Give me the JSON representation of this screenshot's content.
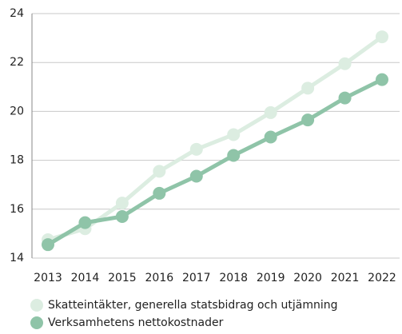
{
  "chart_data": {
    "type": "line",
    "categories": [
      "2013",
      "2014",
      "2015",
      "2016",
      "2017",
      "2018",
      "2019",
      "2020",
      "2021",
      "2022"
    ],
    "series": [
      {
        "name": "Skatteintäkter, generella statsbidrag och utjämning",
        "color": "#dcede1",
        "values": [
          14.75,
          15.2,
          16.25,
          17.55,
          18.45,
          19.05,
          19.95,
          20.95,
          21.95,
          23.05
        ]
      },
      {
        "name": "Verksamhetens nettokostnader",
        "color": "#8fc4a8",
        "values": [
          14.55,
          15.45,
          15.7,
          16.65,
          17.35,
          18.2,
          18.95,
          19.65,
          20.55,
          21.3
        ]
      }
    ],
    "ylim": [
      14,
      24
    ],
    "yticks": [
      14,
      16,
      18,
      20,
      22,
      24
    ],
    "grid": true
  }
}
